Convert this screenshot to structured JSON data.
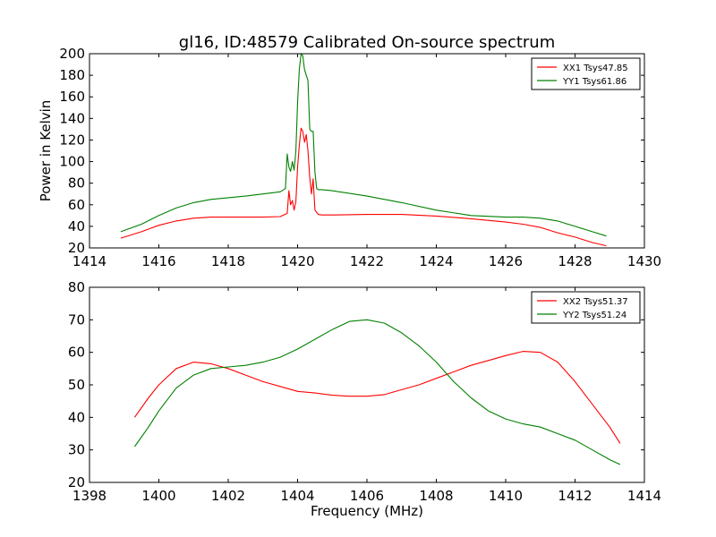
{
  "title": "gl16, ID:48579 Calibrated On-source spectrum",
  "chart_data": [
    {
      "type": "line",
      "title": "gl16, ID:48579 Calibrated On-source spectrum",
      "xlabel": "",
      "ylabel": "Power in Kelvin",
      "xlim": [
        1414,
        1430
      ],
      "ylim": [
        20,
        200
      ],
      "xticks": [
        "1414",
        "1416",
        "1418",
        "1420",
        "1422",
        "1424",
        "1426",
        "1428",
        "1430"
      ],
      "yticks": [
        "20",
        "40",
        "60",
        "80",
        "100",
        "120",
        "140",
        "160",
        "180",
        "200"
      ],
      "grid": false,
      "legend": "top-right",
      "series": [
        {
          "name": "XX1 Tsys47.85",
          "color": "#ff0000",
          "x": [
            1414.9,
            1415.5,
            1416.0,
            1416.5,
            1417.0,
            1417.5,
            1418.0,
            1418.5,
            1419.0,
            1419.5,
            1419.7,
            1419.75,
            1419.8,
            1419.85,
            1419.9,
            1419.95,
            1420.0,
            1420.05,
            1420.1,
            1420.15,
            1420.2,
            1420.25,
            1420.3,
            1420.35,
            1420.4,
            1420.45,
            1420.5,
            1420.6,
            1420.7,
            1421.0,
            1422.0,
            1423.0,
            1424.0,
            1425.0,
            1426.0,
            1426.5,
            1427.0,
            1427.5,
            1428.0,
            1428.5,
            1428.9
          ],
          "values": [
            29,
            35,
            41,
            45,
            47.5,
            48.5,
            48.5,
            48.5,
            48.5,
            49,
            52,
            73,
            60,
            64,
            55,
            63,
            95,
            115,
            131,
            128,
            118,
            125,
            110,
            85,
            70,
            84,
            55,
            51,
            50.5,
            50.5,
            51,
            51,
            49.5,
            47,
            44,
            42,
            39,
            34,
            30,
            25,
            22
          ]
        },
        {
          "name": "YY1 Tsys61.86",
          "color": "#008000",
          "x": [
            1414.9,
            1415.5,
            1416.0,
            1416.5,
            1417.0,
            1417.5,
            1418.0,
            1418.5,
            1419.0,
            1419.5,
            1419.65,
            1419.7,
            1419.75,
            1419.8,
            1419.85,
            1419.9,
            1419.95,
            1420.0,
            1420.05,
            1420.1,
            1420.15,
            1420.2,
            1420.25,
            1420.3,
            1420.35,
            1420.4,
            1420.45,
            1420.5,
            1420.55,
            1420.6,
            1420.7,
            1421.0,
            1422.0,
            1423.0,
            1424.0,
            1425.0,
            1426.0,
            1426.5,
            1427.0,
            1427.5,
            1428.0,
            1428.5,
            1428.9
          ],
          "values": [
            35,
            42,
            50,
            57,
            62,
            65,
            66.5,
            68,
            70,
            72,
            75,
            107,
            95,
            91,
            100,
            92,
            110,
            155,
            185,
            200,
            198,
            185,
            180,
            175,
            130,
            128,
            128,
            90,
            75,
            74,
            74,
            73,
            68,
            62,
            55,
            50,
            48.5,
            48.5,
            47.5,
            45,
            40,
            35,
            31
          ]
        }
      ]
    },
    {
      "type": "line",
      "title": "",
      "xlabel": "Frequency (MHz)",
      "ylabel": "",
      "xlim": [
        1398,
        1414
      ],
      "ylim": [
        20,
        80
      ],
      "xticks": [
        "1398",
        "1400",
        "1402",
        "1404",
        "1406",
        "1408",
        "1410",
        "1412",
        "1414"
      ],
      "yticks": [
        "20",
        "30",
        "40",
        "50",
        "60",
        "70",
        "80"
      ],
      "grid": false,
      "legend": "top-right",
      "series": [
        {
          "name": "XX2 Tsys51.37",
          "color": "#ff0000",
          "x": [
            1399.3,
            1399.7,
            1400.0,
            1400.5,
            1401.0,
            1401.5,
            1402.0,
            1402.5,
            1403.0,
            1403.5,
            1404.0,
            1404.5,
            1405.0,
            1405.5,
            1406.0,
            1406.5,
            1407.0,
            1407.5,
            1408.0,
            1408.5,
            1409.0,
            1409.5,
            1410.0,
            1410.5,
            1411.0,
            1411.5,
            1412.0,
            1412.5,
            1413.0,
            1413.3
          ],
          "values": [
            40,
            46,
            50,
            55,
            57,
            56.5,
            55,
            53,
            51,
            49.5,
            48,
            47.5,
            46.8,
            46.5,
            46.5,
            47,
            48.5,
            50,
            52,
            54,
            56,
            57.5,
            59,
            60.3,
            60,
            57,
            51,
            44,
            37,
            32
          ]
        },
        {
          "name": "YY2 Tsys51.24",
          "color": "#008000",
          "x": [
            1399.3,
            1399.7,
            1400.0,
            1400.5,
            1401.0,
            1401.5,
            1402.0,
            1402.5,
            1403.0,
            1403.5,
            1404.0,
            1404.5,
            1405.0,
            1405.5,
            1406.0,
            1406.5,
            1407.0,
            1407.5,
            1408.0,
            1408.5,
            1409.0,
            1409.5,
            1410.0,
            1410.5,
            1411.0,
            1411.5,
            1412.0,
            1412.5,
            1413.0,
            1413.3
          ],
          "values": [
            31,
            37,
            42,
            49,
            53,
            55,
            55.5,
            56,
            57,
            58.5,
            61,
            64,
            67,
            69.5,
            70,
            69,
            66,
            62,
            57,
            51,
            46,
            42,
            39.5,
            38,
            37,
            35,
            33,
            30,
            27,
            25.5
          ]
        }
      ]
    }
  ]
}
